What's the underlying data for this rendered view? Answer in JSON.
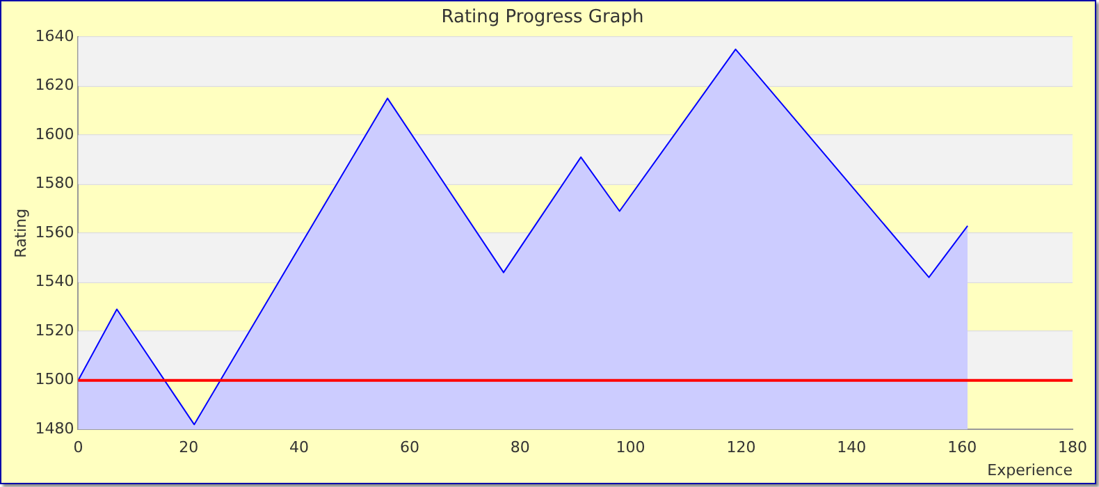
{
  "chart_data": {
    "type": "area",
    "title": "Rating Progress Graph",
    "xlabel": "Experience",
    "ylabel": "Rating",
    "x": [
      0,
      7,
      21,
      56,
      77,
      91,
      98,
      119,
      154,
      161
    ],
    "series": [
      {
        "color": "#0000ff",
        "values": [
          1500,
          1529,
          1482,
          1615,
          1544,
          1591,
          1569,
          1635,
          1542,
          1563
        ]
      }
    ],
    "xlim": [
      0,
      180
    ],
    "xticks": [
      0,
      20,
      40,
      60,
      80,
      100,
      120,
      140,
      160,
      180
    ],
    "ylim": [
      1480,
      1640
    ],
    "yticks": [
      1480,
      1500,
      1520,
      1540,
      1560,
      1580,
      1600,
      1620,
      1640
    ],
    "grid": "y",
    "legend": false,
    "ref_lines": [
      {
        "axis": "y",
        "value": 1500,
        "color": "#ff0000"
      }
    ]
  }
}
